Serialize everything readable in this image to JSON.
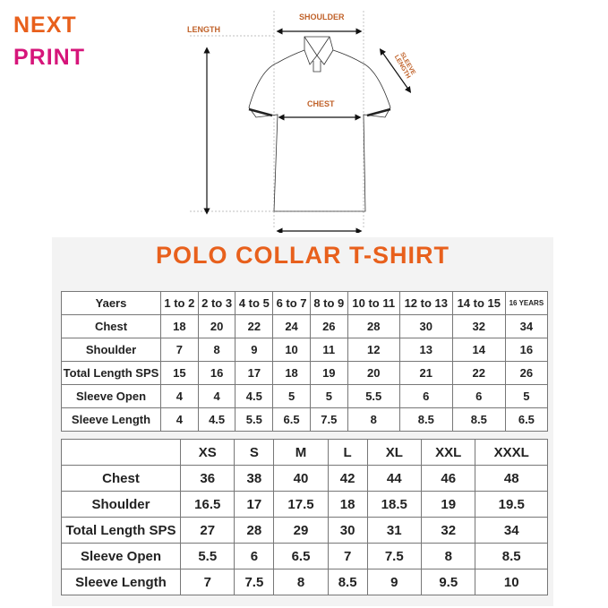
{
  "logo": {
    "line1": "NEXT",
    "line2": "PRINT",
    "colors": {
      "next": "#e8601c",
      "print": "#d6157a"
    }
  },
  "diagram": {
    "length": "LENGTH",
    "shoulder": "SHOULDER",
    "chest": "CHEST",
    "sleeve_length": "SLEEVE LENGTH"
  },
  "title": "POLO COLLAR T-SHIRT",
  "kids_table": {
    "header": [
      "Yaers",
      "1 to 2",
      "2 to 3",
      "4 to 5",
      "6 to 7",
      "8 to 9",
      "10 to 11",
      "12 to 13",
      "14 to 15",
      "16 YEARS"
    ],
    "rows": [
      [
        "Chest",
        "18",
        "20",
        "22",
        "24",
        "26",
        "28",
        "30",
        "32",
        "34"
      ],
      [
        "Shoulder",
        "7",
        "8",
        "9",
        "10",
        "11",
        "12",
        "13",
        "14",
        "16"
      ],
      [
        "Total Length SPS",
        "15",
        "16",
        "17",
        "18",
        "19",
        "20",
        "21",
        "22",
        "26"
      ],
      [
        "Sleeve Open",
        "4",
        "4",
        "4.5",
        "5",
        "5",
        "5.5",
        "6",
        "6",
        "5"
      ],
      [
        "Sleeve Length",
        "4",
        "4.5",
        "5.5",
        "6.5",
        "7.5",
        "8",
        "8.5",
        "8.5",
        "6.5"
      ]
    ]
  },
  "adult_table": {
    "header": [
      "",
      "XS",
      "S",
      "M",
      "L",
      "XL",
      "XXL",
      "XXXL"
    ],
    "rows": [
      [
        "Chest",
        "36",
        "38",
        "40",
        "42",
        "44",
        "46",
        "48"
      ],
      [
        "Shoulder",
        "16.5",
        "17",
        "17.5",
        "18",
        "18.5",
        "19",
        "19.5"
      ],
      [
        "Total Length SPS",
        "27",
        "28",
        "29",
        "30",
        "31",
        "32",
        "34"
      ],
      [
        "Sleeve Open",
        "5.5",
        "6",
        "6.5",
        "7",
        "7.5",
        "8",
        "8.5"
      ],
      [
        "Sleeve Length",
        "7",
        "7.5",
        "8",
        "8.5",
        "9",
        "9.5",
        "10"
      ]
    ]
  }
}
